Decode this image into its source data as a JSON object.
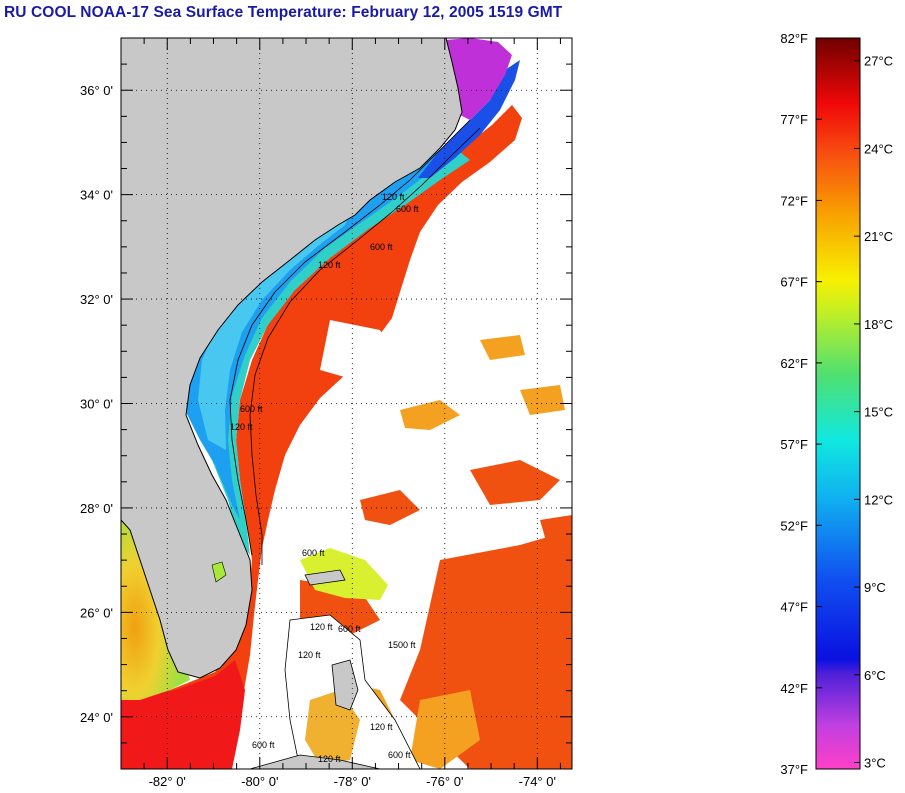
{
  "title": "RU COOL  NOAA-17  Sea Surface Temperature:  February 12, 2005 1519 GMT",
  "map": {
    "lon_range": [
      -83,
      -73.25
    ],
    "lat_range": [
      23,
      37
    ],
    "lat_ticks": [
      {
        "value": 36,
        "label": "36° 0'"
      },
      {
        "value": 34,
        "label": "34° 0'"
      },
      {
        "value": 32,
        "label": "32° 0'"
      },
      {
        "value": 30,
        "label": "30° 0'"
      },
      {
        "value": 28,
        "label": "28° 0'"
      },
      {
        "value": 26,
        "label": "26° 0'"
      },
      {
        "value": 24,
        "label": "24° 0'"
      }
    ],
    "lon_ticks": [
      {
        "value": -82,
        "label": "-82° 0'"
      },
      {
        "value": -80,
        "label": "-80° 0'"
      },
      {
        "value": -78,
        "label": "-78° 0'"
      },
      {
        "value": -76,
        "label": "-76° 0'"
      },
      {
        "value": -74,
        "label": "-74° 0'"
      }
    ],
    "contour_labels": [
      "120 ft",
      "600 ft",
      "120 ft",
      "600 ft",
      "120 ft",
      "600 ft",
      "600 ft",
      "120 ft",
      "600 ft",
      "120 ft",
      "1500 ft",
      "120 ft",
      "600 ft",
      "600 ft",
      "120 ft"
    ],
    "colors": {
      "land": "#c8c8c8",
      "no_data": "#ffffff",
      "gulf_stream": "#f23c10",
      "shelf_cold": "#1e5cf0"
    }
  },
  "colorbar": {
    "f_ticks": [
      "82°F",
      "77°F",
      "72°F",
      "67°F",
      "62°F",
      "57°F",
      "52°F",
      "47°F",
      "42°F",
      "37°F"
    ],
    "c_ticks": [
      "27°C",
      "24°C",
      "21°C",
      "18°C",
      "15°C",
      "12°C",
      "9°C",
      "6°C",
      "3°C"
    ],
    "f_range": [
      37,
      82
    ]
  }
}
